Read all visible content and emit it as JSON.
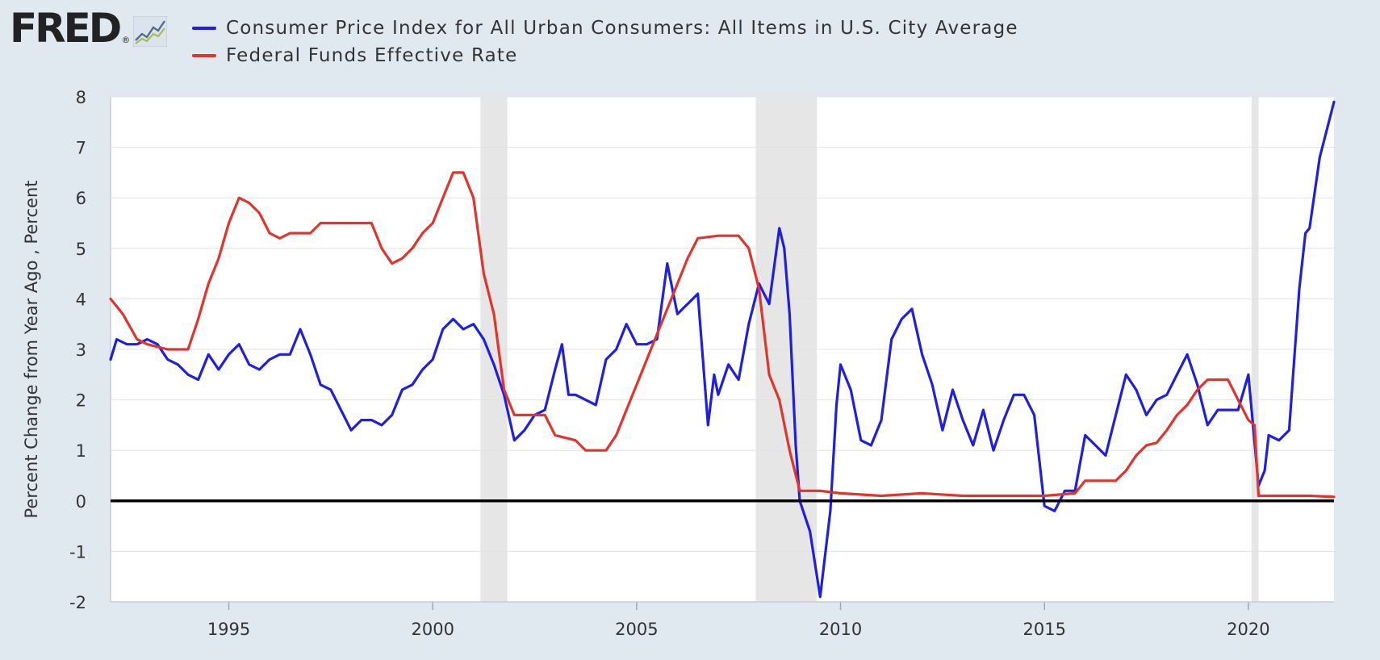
{
  "brand": {
    "logo_text": "FRED",
    "registered_mark": "®"
  },
  "chart_data": {
    "type": "line",
    "title": "",
    "xlabel": "",
    "ylabel": "Percent Change from Year Ago , Percent",
    "xlim": [
      1992.1,
      2022.1
    ],
    "ylim": [
      -2,
      8
    ],
    "y_ticks": [
      8,
      7,
      6,
      5,
      4,
      3,
      2,
      1,
      0,
      -1,
      -2
    ],
    "x_ticks": [
      {
        "value": 1995,
        "label": "1995"
      },
      {
        "value": 2000,
        "label": "2000"
      },
      {
        "value": 2005,
        "label": "2005"
      },
      {
        "value": 2010,
        "label": "2010"
      },
      {
        "value": 2015,
        "label": "2015"
      },
      {
        "value": 2020,
        "label": "2020"
      }
    ],
    "recessions": [
      [
        2001.17,
        2001.83
      ],
      [
        2007.92,
        2009.42
      ],
      [
        2020.08,
        2020.25
      ]
    ],
    "series": [
      {
        "name": "Consumer Price Index for All Urban Consumers: All Items in U.S. City Average",
        "color": "#1f1fe0",
        "x": [
          1992.1,
          1992.25,
          1992.5,
          1992.75,
          1993.0,
          1993.25,
          1993.5,
          1993.75,
          1994.0,
          1994.25,
          1994.5,
          1994.75,
          1995.0,
          1995.25,
          1995.5,
          1995.75,
          1996.0,
          1996.25,
          1996.5,
          1996.75,
          1997.0,
          1997.25,
          1997.5,
          1997.75,
          1998.0,
          1998.25,
          1998.5,
          1998.75,
          1999.0,
          1999.25,
          1999.5,
          1999.75,
          2000.0,
          2000.25,
          2000.5,
          2000.75,
          2001.0,
          2001.25,
          2001.5,
          2001.75,
          2002.0,
          2002.25,
          2002.5,
          2002.75,
          2003.0,
          2003.17,
          2003.33,
          2003.5,
          2003.75,
          2004.0,
          2004.25,
          2004.5,
          2004.75,
          2005.0,
          2005.25,
          2005.5,
          2005.75,
          2005.85,
          2006.0,
          2006.25,
          2006.5,
          2006.75,
          2006.9,
          2007.0,
          2007.25,
          2007.5,
          2007.75,
          2008.0,
          2008.25,
          2008.5,
          2008.62,
          2008.75,
          2008.9,
          2009.0,
          2009.25,
          2009.5,
          2009.75,
          2009.9,
          2010.0,
          2010.25,
          2010.5,
          2010.75,
          2011.0,
          2011.25,
          2011.5,
          2011.75,
          2012.0,
          2012.25,
          2012.5,
          2012.75,
          2013.0,
          2013.25,
          2013.5,
          2013.75,
          2014.0,
          2014.25,
          2014.5,
          2014.75,
          2015.0,
          2015.25,
          2015.5,
          2015.75,
          2016.0,
          2016.25,
          2016.5,
          2016.75,
          2017.0,
          2017.25,
          2017.5,
          2017.75,
          2018.0,
          2018.25,
          2018.5,
          2018.75,
          2019.0,
          2019.25,
          2019.5,
          2019.75,
          2020.0,
          2020.25,
          2020.4,
          2020.5,
          2020.75,
          2021.0,
          2021.25,
          2021.4,
          2021.5,
          2021.75,
          2022.1
        ],
        "values": [
          2.8,
          3.2,
          3.1,
          3.1,
          3.2,
          3.1,
          2.8,
          2.7,
          2.5,
          2.4,
          2.9,
          2.6,
          2.9,
          3.1,
          2.7,
          2.6,
          2.8,
          2.9,
          2.9,
          3.4,
          2.9,
          2.3,
          2.2,
          1.8,
          1.4,
          1.6,
          1.6,
          1.5,
          1.7,
          2.2,
          2.3,
          2.6,
          2.8,
          3.4,
          3.6,
          3.4,
          3.5,
          3.2,
          2.7,
          2.1,
          1.2,
          1.4,
          1.7,
          1.8,
          2.6,
          3.1,
          2.1,
          2.1,
          2.0,
          1.9,
          2.8,
          3.0,
          3.5,
          3.1,
          3.1,
          3.2,
          4.7,
          4.3,
          3.7,
          3.9,
          4.1,
          1.5,
          2.5,
          2.1,
          2.7,
          2.4,
          3.5,
          4.3,
          3.9,
          5.4,
          5.0,
          3.7,
          1.1,
          0.0,
          -0.6,
          -1.9,
          -0.2,
          1.9,
          2.7,
          2.2,
          1.2,
          1.1,
          1.6,
          3.2,
          3.6,
          3.8,
          2.9,
          2.3,
          1.4,
          2.2,
          1.6,
          1.1,
          1.8,
          1.0,
          1.6,
          2.1,
          2.1,
          1.7,
          -0.1,
          -0.2,
          0.2,
          0.2,
          1.3,
          1.1,
          0.9,
          1.7,
          2.5,
          2.2,
          1.7,
          2.0,
          2.1,
          2.5,
          2.9,
          2.3,
          1.5,
          1.8,
          1.8,
          1.8,
          2.5,
          0.3,
          0.6,
          1.3,
          1.2,
          1.4,
          4.2,
          5.3,
          5.4,
          6.8,
          7.9
        ]
      },
      {
        "name": "Federal Funds Effective Rate",
        "color": "#e0342c",
        "x": [
          1992.1,
          1992.4,
          1992.75,
          1993.0,
          1993.5,
          1994.0,
          1994.25,
          1994.5,
          1994.75,
          1995.0,
          1995.25,
          1995.5,
          1995.75,
          1996.0,
          1996.25,
          1996.5,
          1997.0,
          1997.25,
          1997.5,
          1998.0,
          1998.5,
          1998.75,
          1999.0,
          1999.25,
          1999.5,
          1999.75,
          2000.0,
          2000.25,
          2000.5,
          2000.75,
          2001.0,
          2001.25,
          2001.5,
          2001.75,
          2002.0,
          2002.5,
          2002.75,
          2003.0,
          2003.5,
          2003.75,
          2004.0,
          2004.25,
          2004.5,
          2004.75,
          2005.0,
          2005.25,
          2005.5,
          2005.75,
          2006.0,
          2006.25,
          2006.5,
          2007.0,
          2007.5,
          2007.75,
          2008.0,
          2008.25,
          2008.5,
          2008.75,
          2009.0,
          2009.5,
          2010.0,
          2011.0,
          2012.0,
          2013.0,
          2014.0,
          2015.0,
          2015.75,
          2016.0,
          2016.25,
          2016.5,
          2016.75,
          2017.0,
          2017.25,
          2017.5,
          2017.75,
          2018.0,
          2018.25,
          2018.5,
          2018.75,
          2019.0,
          2019.25,
          2019.5,
          2019.75,
          2020.0,
          2020.15,
          2020.25,
          2020.5,
          2021.0,
          2021.5,
          2022.1
        ],
        "values": [
          4.0,
          3.7,
          3.2,
          3.1,
          3.0,
          3.0,
          3.6,
          4.3,
          4.8,
          5.5,
          6.0,
          5.9,
          5.7,
          5.3,
          5.2,
          5.3,
          5.3,
          5.5,
          5.5,
          5.5,
          5.5,
          5.0,
          4.7,
          4.8,
          5.0,
          5.3,
          5.5,
          6.0,
          6.5,
          6.5,
          6.0,
          4.5,
          3.7,
          2.2,
          1.7,
          1.7,
          1.7,
          1.3,
          1.2,
          1.0,
          1.0,
          1.0,
          1.3,
          1.8,
          2.3,
          2.8,
          3.3,
          3.8,
          4.3,
          4.8,
          5.2,
          5.25,
          5.25,
          5.0,
          4.2,
          2.5,
          2.0,
          1.0,
          0.2,
          0.2,
          0.15,
          0.1,
          0.15,
          0.1,
          0.1,
          0.1,
          0.15,
          0.4,
          0.4,
          0.4,
          0.4,
          0.6,
          0.9,
          1.1,
          1.15,
          1.4,
          1.7,
          1.9,
          2.2,
          2.4,
          2.4,
          2.4,
          2.0,
          1.6,
          1.5,
          0.1,
          0.1,
          0.1,
          0.1,
          0.08
        ]
      }
    ]
  }
}
